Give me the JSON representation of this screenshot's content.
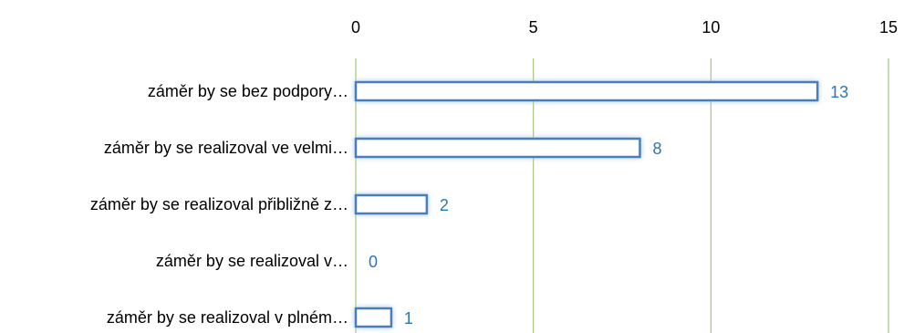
{
  "chart_data": {
    "type": "bar",
    "orientation": "horizontal",
    "categories": [
      "záměr by se bez podpory…",
      "záměr by se realizoval ve velmi…",
      "záměr by se realizoval přibližně z…",
      "záměr by se realizoval v…",
      "záměr by se realizoval v plném…"
    ],
    "values": [
      13,
      8,
      2,
      0,
      1
    ],
    "xlim": [
      0,
      15
    ],
    "xticks": [
      0,
      5,
      10,
      15
    ],
    "x_axis_position": "top",
    "grid": true,
    "title": "",
    "xlabel": "",
    "ylabel": "",
    "colors": {
      "bar_outline": "#4A7EBB",
      "bar_glow": "#9DC3E6",
      "bar_fill": "#FFFFFF",
      "grid": "#A9C47F",
      "data_label": "#2E75B6",
      "text": "#000000"
    }
  }
}
